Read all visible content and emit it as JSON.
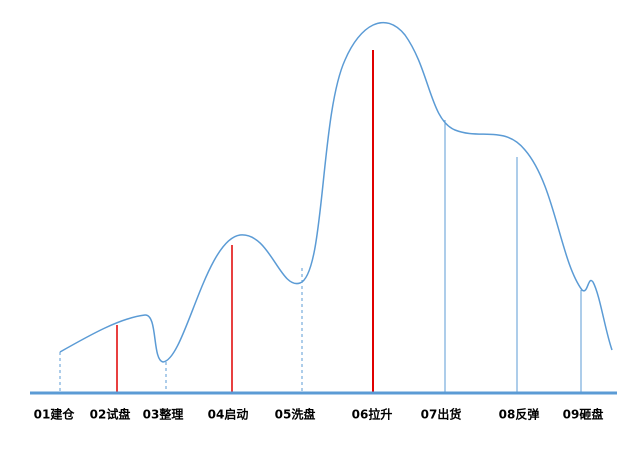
{
  "stages": [
    "01建仓",
    "02试盘",
    "03整理",
    "04启动",
    "05洗盘",
    "06拉升",
    "07出货",
    "08反弹",
    "09砸盘"
  ]
}
